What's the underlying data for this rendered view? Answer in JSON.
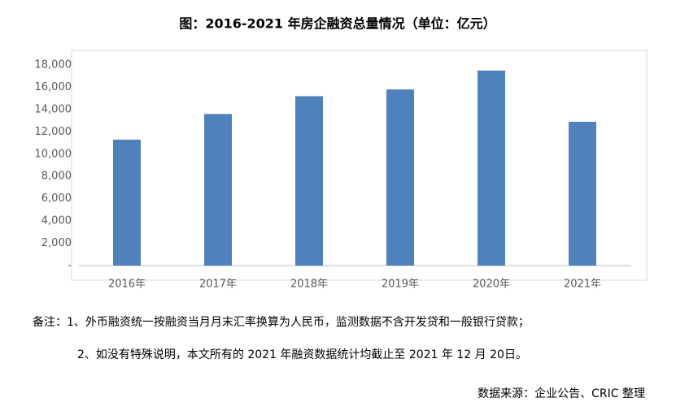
{
  "chart_data": {
    "type": "bar",
    "title": "图：2016-2021 年房企融资总量情况（单位：亿元）",
    "categories": [
      "2016年",
      "2017年",
      "2018年",
      "2019年",
      "2020年",
      "2021年"
    ],
    "values": [
      11300,
      13600,
      15200,
      15800,
      17500,
      12900
    ],
    "color": "#4f81bd",
    "ylim": [
      0,
      18000
    ],
    "yticks": [
      {
        "value": 0,
        "label": "-"
      },
      {
        "value": 2000,
        "label": "2,000"
      },
      {
        "value": 4000,
        "label": "4,000"
      },
      {
        "value": 6000,
        "label": "6,000"
      },
      {
        "value": 8000,
        "label": "8,000"
      },
      {
        "value": 10000,
        "label": "10,000"
      },
      {
        "value": 12000,
        "label": "12,000"
      },
      {
        "value": 14000,
        "label": "14,000"
      },
      {
        "value": 16000,
        "label": "16,000"
      },
      {
        "value": 18000,
        "label": "18,000"
      }
    ],
    "grid": false,
    "notes": [
      "备注：1、外币融资统一按融资当月月末汇率换算为人民币，监测数据不含开发贷和一般银行贷款；",
      "2、如没有特殊说明，本文所有的 2021 年融资数据统计均截止至 2021 年 12 月 20日。"
    ],
    "source": "数据来源：企业公告、CRIC 整理"
  }
}
